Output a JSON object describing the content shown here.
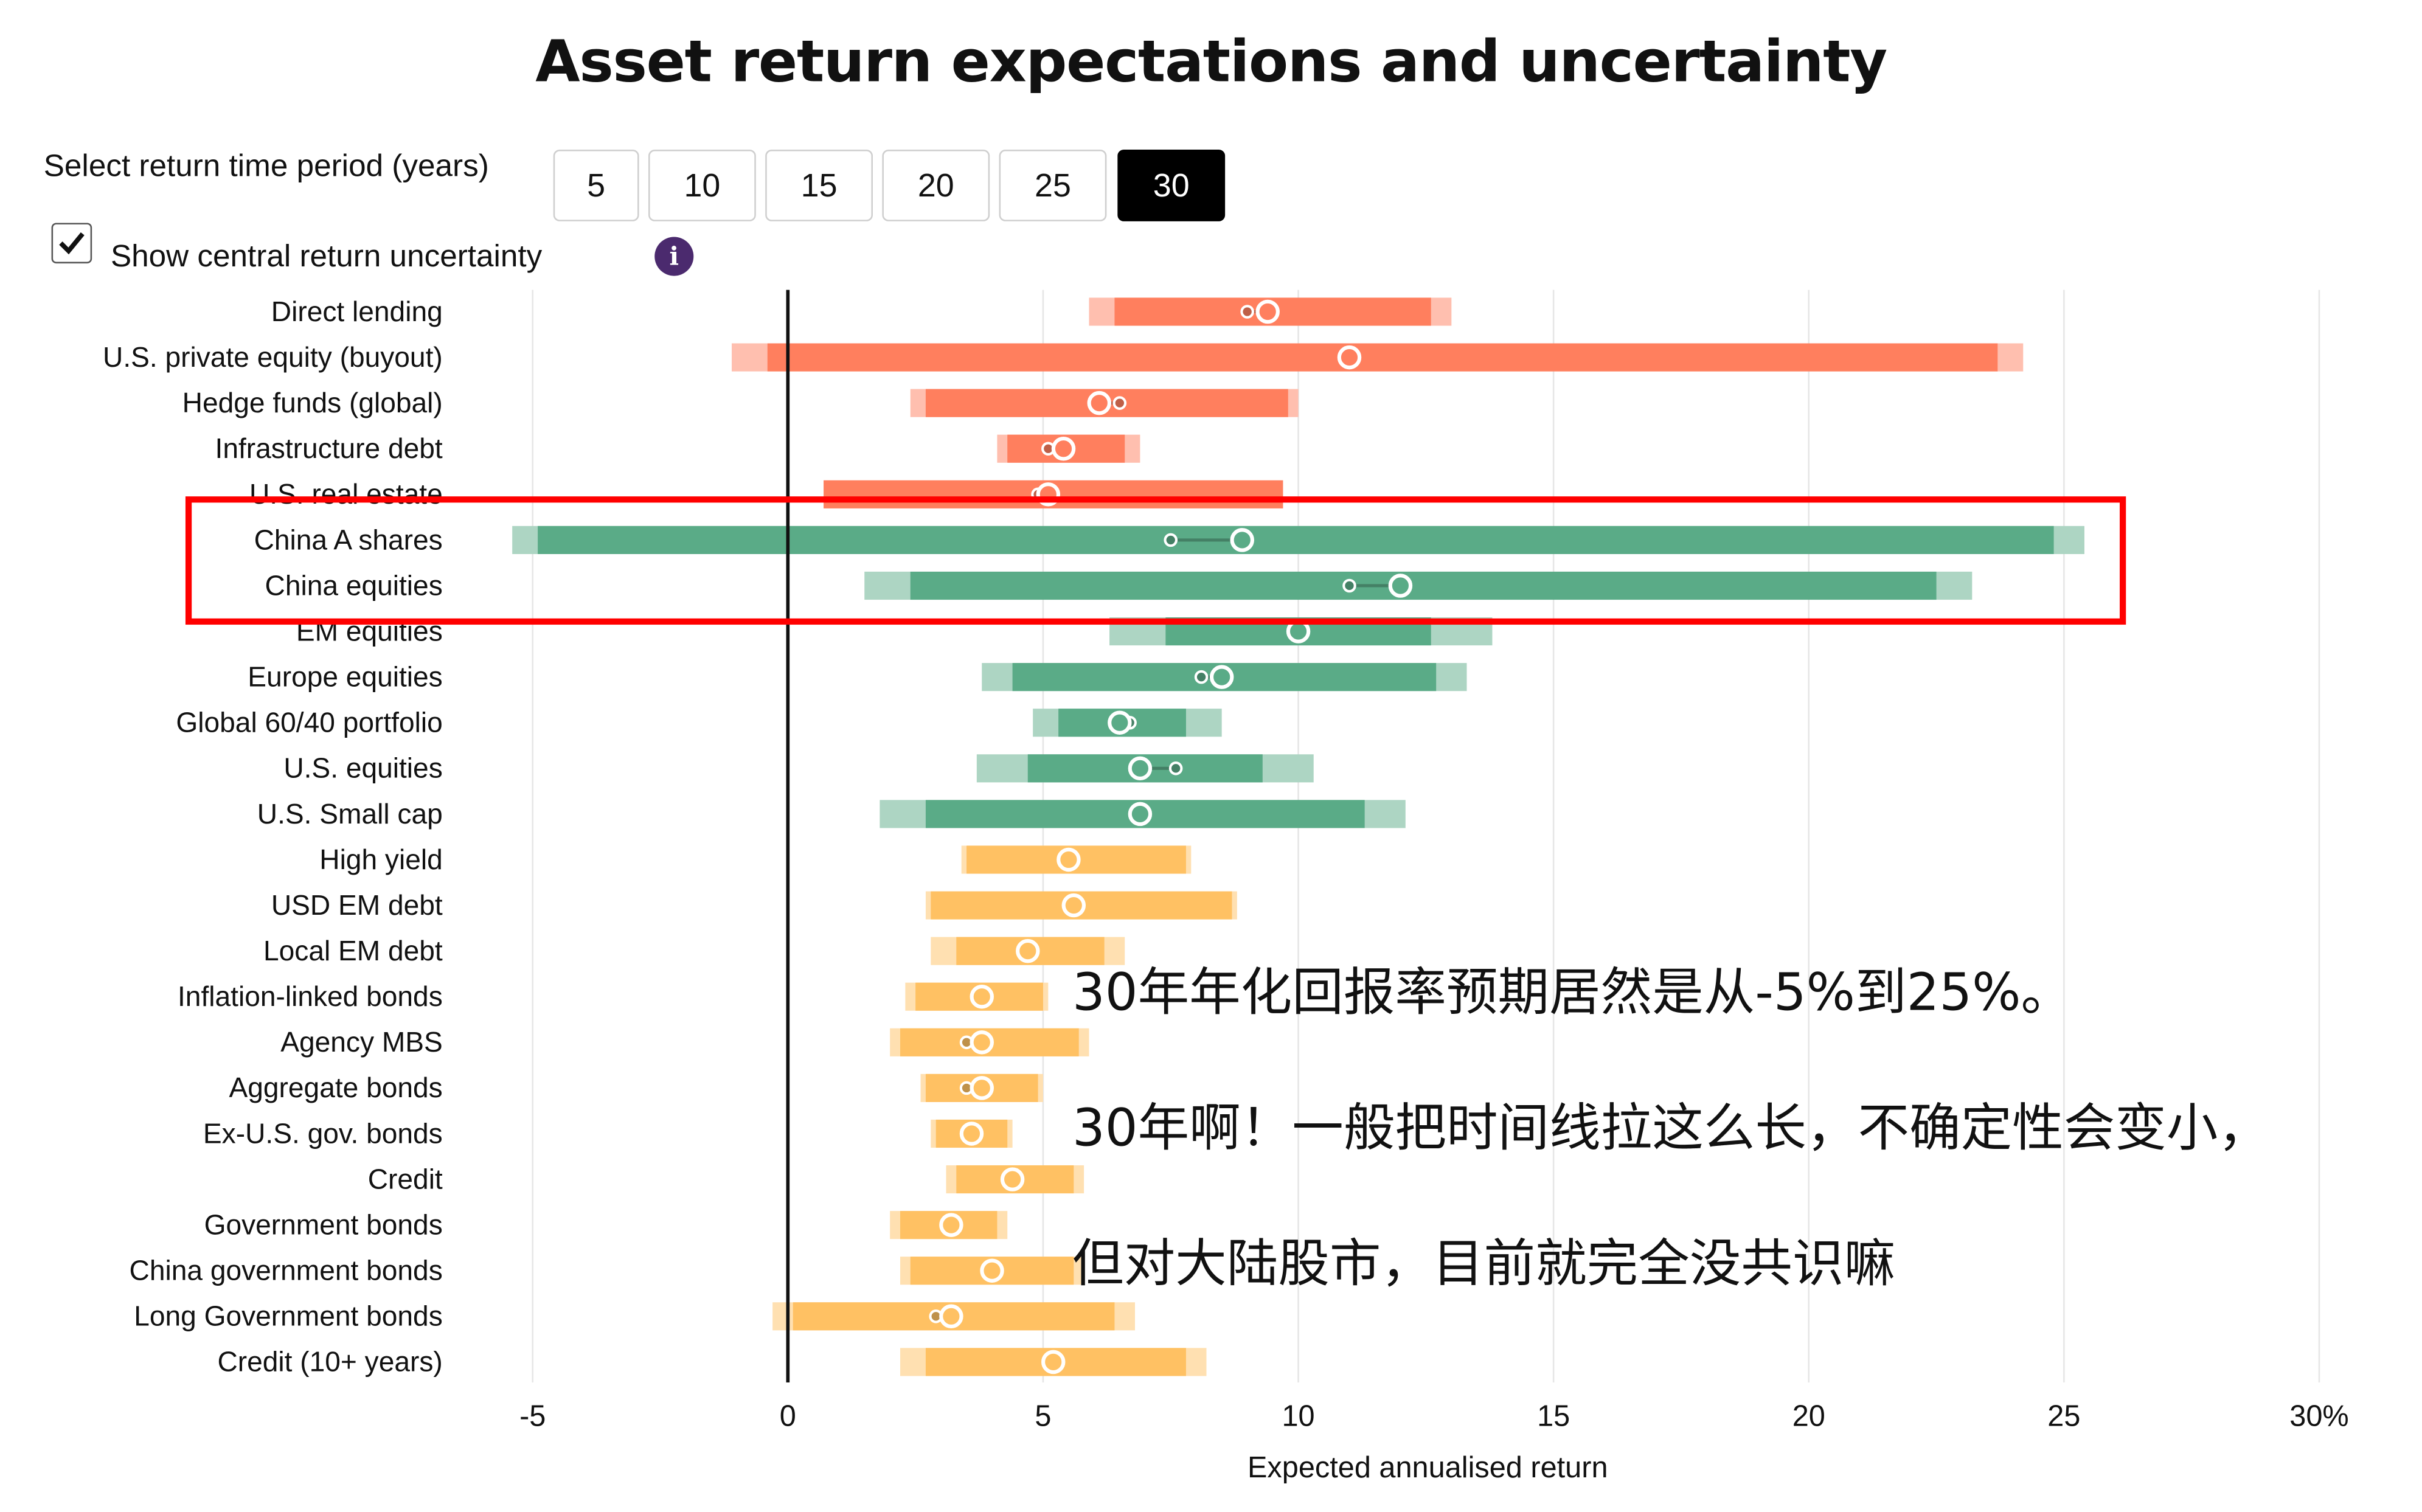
{
  "title": "Asset return expectations and uncertainty",
  "controls": {
    "period_label": "Select return time period (years)",
    "periods": [
      "5",
      "10",
      "15",
      "20",
      "25",
      "30"
    ],
    "selected_period": "30",
    "uncertainty_label": "Show central return uncertainty",
    "uncertainty_checked": true,
    "info_icon": "info-icon"
  },
  "chart_data": {
    "type": "bar",
    "orientation": "horizontal-range",
    "xlabel": "Expected annualised return",
    "xlim": [
      -5,
      30
    ],
    "x_ticks": [
      "-5",
      "0",
      "5",
      "10",
      "15",
      "20",
      "25",
      "30%"
    ],
    "x_tick_values": [
      -5,
      0,
      5,
      10,
      15,
      20,
      25,
      30
    ],
    "grid": true,
    "colors": {
      "alternatives": "#ff7f5e",
      "equities": "#5aab87",
      "fixed_income": "#ffc163"
    },
    "categories": [
      {
        "name": "Direct lending",
        "group": "alternatives",
        "outer": [
          5.9,
          13.0
        ],
        "inner": [
          6.4,
          12.6
        ],
        "central": 9.4,
        "alt": 9.0
      },
      {
        "name": "U.S. private equity (buyout)",
        "group": "alternatives",
        "outer": [
          -1.1,
          24.2
        ],
        "inner": [
          -0.4,
          23.7
        ],
        "central": 11.0,
        "alt": null
      },
      {
        "name": "Hedge funds (global)",
        "group": "alternatives",
        "outer": [
          2.4,
          10.0
        ],
        "inner": [
          2.7,
          9.8
        ],
        "central": 6.1,
        "alt": 6.5
      },
      {
        "name": "Infrastructure debt",
        "group": "alternatives",
        "outer": [
          4.1,
          6.9
        ],
        "inner": [
          4.3,
          6.6
        ],
        "central": 5.4,
        "alt": 5.1
      },
      {
        "name": "U.S. real estate",
        "group": "alternatives",
        "outer": [
          0.7,
          9.7
        ],
        "inner": [
          0.7,
          9.7
        ],
        "central": 5.1,
        "alt": 4.9
      },
      {
        "name": "China A shares",
        "group": "equities",
        "outer": [
          -5.4,
          25.4
        ],
        "inner": [
          -4.9,
          24.8
        ],
        "central": 8.9,
        "alt": 7.5
      },
      {
        "name": "China equities",
        "group": "equities",
        "outer": [
          1.5,
          23.2
        ],
        "inner": [
          2.4,
          22.5
        ],
        "central": 12.0,
        "alt": 11.0
      },
      {
        "name": "EM equities",
        "group": "equities",
        "outer": [
          6.3,
          13.8
        ],
        "inner": [
          7.4,
          12.6
        ],
        "central": 10.0,
        "alt": null
      },
      {
        "name": "Europe equities",
        "group": "equities",
        "outer": [
          3.8,
          13.3
        ],
        "inner": [
          4.4,
          12.7
        ],
        "central": 8.5,
        "alt": 8.1
      },
      {
        "name": "Global 60/40 portfolio",
        "group": "equities",
        "outer": [
          4.8,
          8.5
        ],
        "inner": [
          5.3,
          7.8
        ],
        "central": 6.5,
        "alt": 6.7
      },
      {
        "name": "U.S. equities",
        "group": "equities",
        "outer": [
          3.7,
          10.3
        ],
        "inner": [
          4.7,
          9.3
        ],
        "central": 6.9,
        "alt": 7.6
      },
      {
        "name": "U.S. Small cap",
        "group": "equities",
        "outer": [
          1.8,
          12.1
        ],
        "inner": [
          2.7,
          11.3
        ],
        "central": 6.9,
        "alt": null
      },
      {
        "name": "High yield",
        "group": "fixed_income",
        "outer": [
          3.4,
          7.9
        ],
        "inner": [
          3.5,
          7.8
        ],
        "central": 5.5,
        "alt": null
      },
      {
        "name": "USD EM debt",
        "group": "fixed_income",
        "outer": [
          2.7,
          8.8
        ],
        "inner": [
          2.8,
          8.7
        ],
        "central": 5.6,
        "alt": null
      },
      {
        "name": "Local EM debt",
        "group": "fixed_income",
        "outer": [
          2.8,
          6.6
        ],
        "inner": [
          3.3,
          6.2
        ],
        "central": 4.7,
        "alt": null
      },
      {
        "name": "Inflation-linked bonds",
        "group": "fixed_income",
        "outer": [
          2.3,
          5.1
        ],
        "inner": [
          2.5,
          5.0
        ],
        "central": 3.8,
        "alt": null
      },
      {
        "name": "Agency MBS",
        "group": "fixed_income",
        "outer": [
          2.0,
          5.9
        ],
        "inner": [
          2.2,
          5.7
        ],
        "central": 3.8,
        "alt": 3.5
      },
      {
        "name": "Aggregate bonds",
        "group": "fixed_income",
        "outer": [
          2.6,
          5.0
        ],
        "inner": [
          2.7,
          4.9
        ],
        "central": 3.8,
        "alt": 3.5
      },
      {
        "name": "Ex-U.S. gov. bonds",
        "group": "fixed_income",
        "outer": [
          2.8,
          4.4
        ],
        "inner": [
          2.9,
          4.3
        ],
        "central": 3.6,
        "alt": null
      },
      {
        "name": "Credit",
        "group": "fixed_income",
        "outer": [
          3.1,
          5.8
        ],
        "inner": [
          3.3,
          5.6
        ],
        "central": 4.4,
        "alt": null
      },
      {
        "name": "Government bonds",
        "group": "fixed_income",
        "outer": [
          2.0,
          4.3
        ],
        "inner": [
          2.2,
          4.1
        ],
        "central": 3.2,
        "alt": null
      },
      {
        "name": "China government bonds",
        "group": "fixed_income",
        "outer": [
          2.2,
          5.8
        ],
        "inner": [
          2.4,
          5.6
        ],
        "central": 4.0,
        "alt": null
      },
      {
        "name": "Long Government bonds",
        "group": "fixed_income",
        "outer": [
          -0.3,
          6.8
        ],
        "inner": [
          0.1,
          6.4
        ],
        "central": 3.2,
        "alt": 2.9
      },
      {
        "name": "Credit (10+ years)",
        "group": "fixed_income",
        "outer": [
          2.2,
          8.2
        ],
        "inner": [
          2.7,
          7.8
        ],
        "central": 5.2,
        "alt": null
      }
    ],
    "highlight": {
      "categories": [
        "China A shares",
        "China equities"
      ],
      "color": "#ff0000"
    }
  },
  "annotation": {
    "lines": [
      "30年年化回报率预期居然是从-5%到25%。",
      "30年啊！一般把时间线拉这么长，不确定性会变小，",
      "但对大陆股市，目前就完全没共识嘛"
    ]
  }
}
